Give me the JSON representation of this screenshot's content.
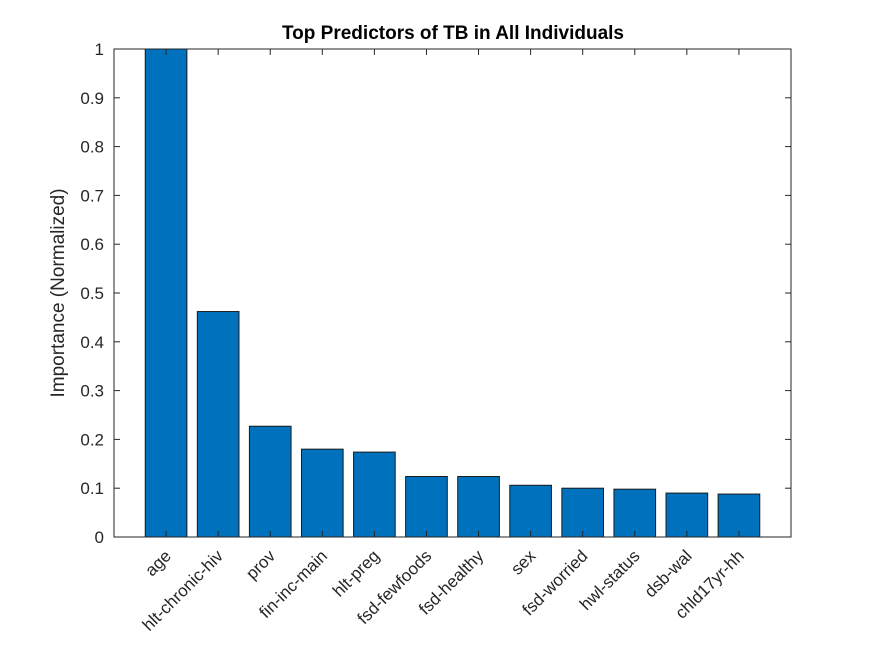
{
  "chart_data": {
    "type": "bar",
    "title": "Top Predictors of TB in All Individuals",
    "xlabel": "",
    "ylabel": "Importance (Normalized)",
    "categories": [
      "age",
      "hlt-chronic-hiv",
      "prov",
      "fin-inc-main",
      "hlt-preg",
      "fsd-fewfoods",
      "fsd-healthy",
      "sex",
      "fsd-worried",
      "hwl-status",
      "dsb-wal",
      "chld17yr-hh"
    ],
    "values": [
      1.0,
      0.462,
      0.227,
      0.18,
      0.174,
      0.124,
      0.124,
      0.106,
      0.1,
      0.098,
      0.09,
      0.088
    ],
    "ylim": [
      0,
      1
    ],
    "yticks": [
      "0",
      "0.1",
      "0.2",
      "0.3",
      "0.4",
      "0.5",
      "0.6",
      "0.7",
      "0.8",
      "0.9",
      "1"
    ],
    "grid": false,
    "bar_color": "#0072BD"
  }
}
